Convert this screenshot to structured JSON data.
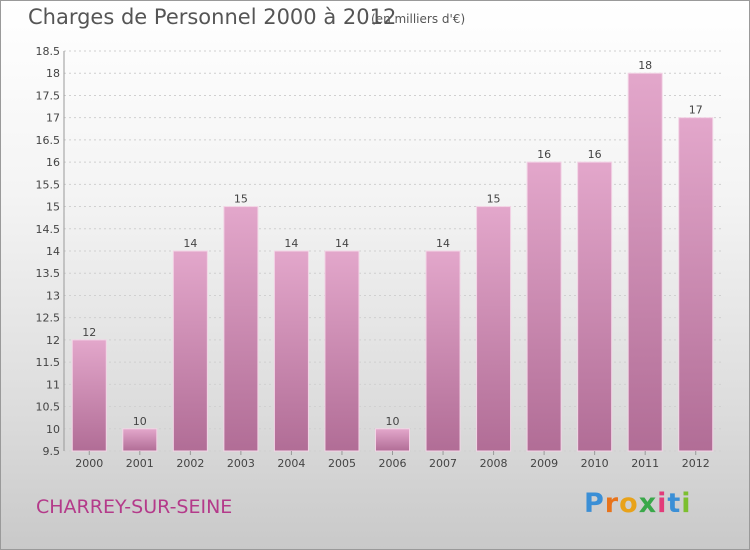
{
  "header": {
    "title": "Charges de Personnel 2000 à 2012",
    "subtitle": "(en milliers d'€)"
  },
  "footer": {
    "town": "CHARREY-SUR-SEINE",
    "brand_letters": [
      "P",
      "r",
      "o",
      "x",
      "i",
      "t",
      "i"
    ]
  },
  "colors": {
    "bar_top": "#e3a7cb",
    "bar_bottom": "#b16d96",
    "town": "#b43a8a",
    "brand": [
      "#3b8fd6",
      "#e8731a",
      "#e8a21a",
      "#3aa84a",
      "#e23c7a",
      "#3b8fd6",
      "#7cbf2f"
    ]
  },
  "chart_data": {
    "type": "bar",
    "categories": [
      "2000",
      "2001",
      "2002",
      "2003",
      "2004",
      "2005",
      "2006",
      "2007",
      "2008",
      "2009",
      "2010",
      "2011",
      "2012"
    ],
    "values": [
      12,
      10,
      14,
      15,
      14,
      14,
      10,
      14,
      15,
      16,
      16,
      18,
      17
    ],
    "data_labels": [
      "12",
      "10",
      "14",
      "15",
      "14",
      "14",
      "10",
      "14",
      "15",
      "16",
      "16",
      "18",
      "17"
    ],
    "y_ticks": [
      "9.5",
      "10",
      "10.5",
      "11",
      "11.5",
      "12",
      "12.5",
      "13",
      "13.5",
      "14",
      "14.5",
      "15",
      "15.5",
      "16",
      "16.5",
      "17",
      "17.5",
      "18",
      "18.5"
    ],
    "ylim": [
      9.5,
      18.5
    ],
    "grid": true,
    "legend": "none"
  }
}
